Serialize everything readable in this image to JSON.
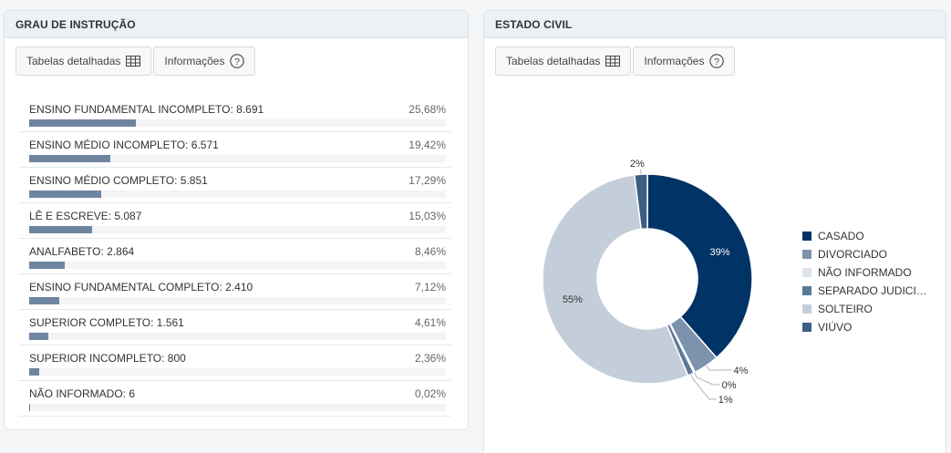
{
  "education": {
    "title": "GRAU DE INSTRUÇÃO",
    "toolbar": {
      "tables_label": "Tabelas detalhadas",
      "info_label": "Informações"
    },
    "items": [
      {
        "label": "ENSINO FUNDAMENTAL INCOMPLETO: 8.691",
        "percent_label": "25,68%",
        "share": 25.68
      },
      {
        "label": "ENSINO MÉDIO INCOMPLETO: 6.571",
        "percent_label": "19,42%",
        "share": 19.42
      },
      {
        "label": "ENSINO MÉDIO COMPLETO: 5.851",
        "percent_label": "17,29%",
        "share": 17.29
      },
      {
        "label": "LÊ E ESCREVE: 5.087",
        "percent_label": "15,03%",
        "share": 15.03
      },
      {
        "label": "ANALFABETO: 2.864",
        "percent_label": "8,46%",
        "share": 8.46
      },
      {
        "label": "ENSINO FUNDAMENTAL COMPLETO: 2.410",
        "percent_label": "7,12%",
        "share": 7.12
      },
      {
        "label": "SUPERIOR COMPLETO: 1.561",
        "percent_label": "4,61%",
        "share": 4.61
      },
      {
        "label": "SUPERIOR INCOMPLETO: 800",
        "percent_label": "2,36%",
        "share": 2.36
      },
      {
        "label": "NÃO INFORMADO: 6",
        "percent_label": "0,02%",
        "share": 0.02
      }
    ]
  },
  "marital": {
    "title": "ESTADO CIVIL",
    "toolbar": {
      "tables_label": "Tabelas detalhadas",
      "info_label": "Informações"
    }
  },
  "chart_data": {
    "type": "pie",
    "variant": "donut",
    "legend_position": "right",
    "slices": [
      {
        "name": "CASADO",
        "value": 39,
        "label": "39%",
        "color": "#003366"
      },
      {
        "name": "DIVORCIADO",
        "value": 4,
        "label": "4%",
        "color": "#7d93ad"
      },
      {
        "name": "NÃO INFORMADO",
        "value": 0.2,
        "label": "0%",
        "color": "#dde3ea"
      },
      {
        "name": "SEPARADO JUDICIA...",
        "value": 1,
        "label": "1%",
        "color": "#5b7a99"
      },
      {
        "name": "SOLTEIRO",
        "value": 55,
        "label": "55%",
        "color": "#c3ceda"
      },
      {
        "name": "VIÚVO",
        "value": 2,
        "label": "2%",
        "color": "#3b5e82"
      }
    ]
  }
}
